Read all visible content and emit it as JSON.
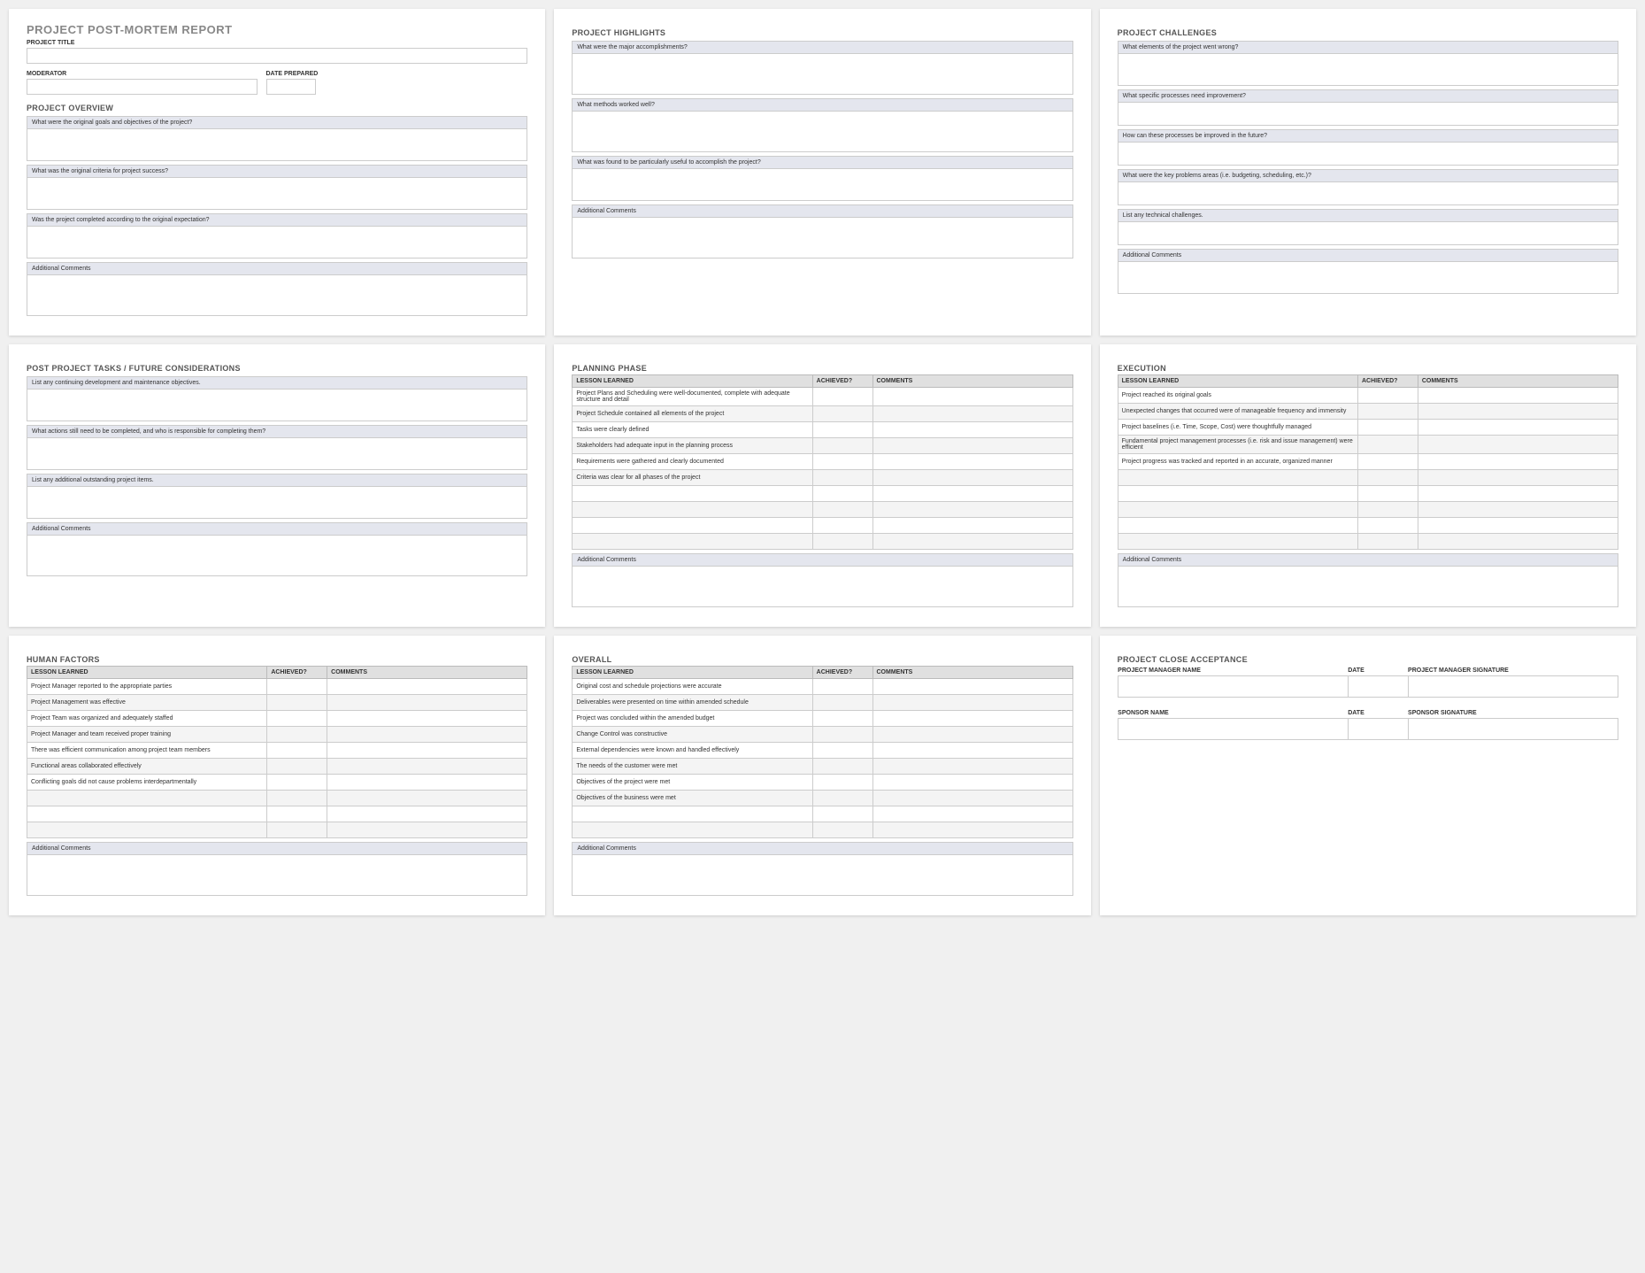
{
  "colors": {
    "page_bg": "#f0f0f0",
    "card_bg": "#ffffff",
    "title_color": "#888888",
    "section_color": "#555555",
    "label_color": "#333333",
    "q_header_bg": "#e4e6ee",
    "table_header_bg": "#e0e0e0",
    "border": "#cccccc"
  },
  "report": {
    "title": "PROJECT POST-MORTEM REPORT",
    "fields": {
      "project_title": "PROJECT TITLE",
      "moderator": "MODERATOR",
      "date_prepared": "DATE PREPARED"
    },
    "overview": {
      "heading": "PROJECT OVERVIEW",
      "q1": "What were the original goals and objectives of the project?",
      "q2": "What was the original criteria for project success?",
      "q3": "Was the project completed according to the original expectation?",
      "comments": "Additional Comments"
    }
  },
  "highlights": {
    "heading": "PROJECT HIGHLIGHTS",
    "q1": "What were the major accomplishments?",
    "q2": "What methods worked well?",
    "q3": "What was found to be particularly useful to accomplish the project?",
    "comments": "Additional Comments"
  },
  "challenges": {
    "heading": "PROJECT CHALLENGES",
    "q1": "What elements of the project went wrong?",
    "q2": "What specific processes need improvement?",
    "q3": "How can these processes be improved in the future?",
    "q4": "What were the key problems areas (i.e. budgeting, scheduling, etc.)?",
    "q5": "List any technical challenges.",
    "comments": "Additional Comments"
  },
  "post_tasks": {
    "heading": "POST PROJECT TASKS / FUTURE CONSIDERATIONS",
    "q1": "List any continuing development and maintenance objectives.",
    "q2": "What actions still need to be completed, and who is responsible for completing them?",
    "q3": "List any additional outstanding project items.",
    "comments": "Additional Comments"
  },
  "table_headers": {
    "lesson": "LESSON LEARNED",
    "achieved": "ACHIEVED?",
    "comments": "COMMENTS"
  },
  "planning": {
    "heading": "PLANNING PHASE",
    "rows": [
      "Project Plans and Scheduling were well-documented, complete with adequate structure and detail",
      "Project Schedule contained all elements of the project",
      "Tasks were clearly defined",
      "Stakeholders had adequate input in the planning process",
      "Requirements were gathered and clearly documented",
      "Criteria was clear for all phases of the project",
      "",
      "",
      "",
      ""
    ],
    "comments": "Additional Comments"
  },
  "execution": {
    "heading": "EXECUTION",
    "rows": [
      "Project reached its original goals",
      "Unexpected changes that occurred were of manageable frequency and immensity",
      "Project baselines (i.e. Time, Scope, Cost) were thoughtfully managed",
      "Fundamental project management processes (i.e. risk and issue management) were efficient",
      "Project progress was tracked and reported in an accurate, organized manner",
      "",
      "",
      "",
      "",
      ""
    ],
    "comments": "Additional Comments"
  },
  "human_factors": {
    "heading": "HUMAN FACTORS",
    "rows": [
      "Project Manager reported to the appropriate parties",
      "Project Management was effective",
      "Project Team was organized and adequately staffed",
      "Project Manager and team received proper training",
      "There was efficient communication among project team members",
      "Functional areas collaborated effectively",
      "Conflicting goals did not cause problems interdepartmentally",
      "",
      "",
      ""
    ],
    "comments": "Additional Comments"
  },
  "overall": {
    "heading": "OVERALL",
    "rows": [
      "Original cost and schedule projections were accurate",
      "Deliverables were presented on time within amended schedule",
      "Project was concluded within the amended budget",
      "Change Control was constructive",
      "External dependencies were known and handled effectively",
      "The needs of the customer were met",
      "Objectives of the project were met",
      "Objectives of the business were met",
      "",
      ""
    ],
    "comments": "Additional Comments"
  },
  "acceptance": {
    "heading": "PROJECT CLOSE ACCEPTANCE",
    "pm_name": "PROJECT MANAGER NAME",
    "date": "DATE",
    "pm_sig": "PROJECT MANAGER SIGNATURE",
    "sponsor_name": "SPONSOR NAME",
    "sponsor_sig": "SPONSOR SIGNATURE"
  }
}
